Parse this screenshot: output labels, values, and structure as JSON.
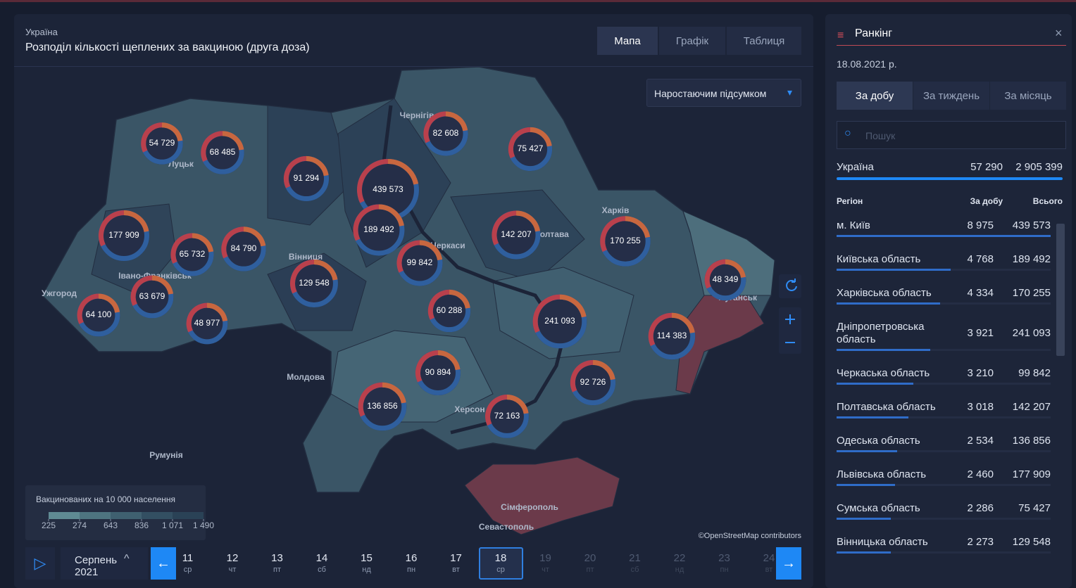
{
  "header": {
    "region": "Україна",
    "title": "Розподіл кількості щеплених за вакциною (друга доза)"
  },
  "view_tabs": [
    "Мапа",
    "Графік",
    "Таблиця"
  ],
  "mode_select": "Наростаючим підсумком",
  "map": {
    "labels": [
      "Чернігів",
      "Харків",
      "Ужгород",
      "Івано-Франківськ",
      "Вінниця",
      "Черкаси",
      "Херсон",
      "Молдова",
      "Румунія",
      "Сімферополь",
      "Севастополь",
      "Луцьк",
      "Полтава",
      "Луганськ"
    ],
    "bubbles": [
      {
        "value": 54729,
        "label": "54 729"
      },
      {
        "value": 68485,
        "label": "68 485"
      },
      {
        "value": 91294,
        "label": "91 294"
      },
      {
        "value": 439573,
        "label": "439 573"
      },
      {
        "value": 82608,
        "label": "82 608"
      },
      {
        "value": 75427,
        "label": "75 427"
      },
      {
        "value": 177909,
        "label": "177 909"
      },
      {
        "value": 189492,
        "label": "189 492"
      },
      {
        "value": 142207,
        "label": "142 207"
      },
      {
        "value": 170255,
        "label": "170 255"
      },
      {
        "value": 65732,
        "label": "65 732"
      },
      {
        "value": 84790,
        "label": "84 790"
      },
      {
        "value": 99842,
        "label": "99 842"
      },
      {
        "value": 129548,
        "label": "129 548"
      },
      {
        "value": 48349,
        "label": "48 349"
      },
      {
        "value": 63679,
        "label": "63 679"
      },
      {
        "value": 64100,
        "label": "64 100"
      },
      {
        "value": 48977,
        "label": "48 977"
      },
      {
        "value": 60288,
        "label": "60 288"
      },
      {
        "value": 241093,
        "label": "241 093"
      },
      {
        "value": 114383,
        "label": "114 383"
      },
      {
        "value": 90894,
        "label": "90 894"
      },
      {
        "value": 92726,
        "label": "92 726"
      },
      {
        "value": 136856,
        "label": "136 856"
      },
      {
        "value": 72163,
        "label": "72 163"
      }
    ],
    "attribution": "©OpenStreetMap contributors"
  },
  "legend": {
    "title": "Вакцинованих на 10 000 населення",
    "ticks": [
      225,
      274,
      643,
      836,
      {
        "value": 1071,
        "label": "1 071"
      },
      {
        "value": 1490,
        "label": "1 490"
      }
    ]
  },
  "timeline": {
    "month": "Серпень",
    "year": 2021,
    "days": [
      {
        "day": 11,
        "weekday": "ср"
      },
      {
        "day": 12,
        "weekday": "чт"
      },
      {
        "day": 13,
        "weekday": "пт"
      },
      {
        "day": 14,
        "weekday": "сб"
      },
      {
        "day": 15,
        "weekday": "нд"
      },
      {
        "day": 16,
        "weekday": "пн"
      },
      {
        "day": 17,
        "weekday": "вт"
      },
      {
        "day": 18,
        "weekday": "ср"
      },
      {
        "day": 19,
        "weekday": "чт"
      },
      {
        "day": 20,
        "weekday": "пт"
      },
      {
        "day": 21,
        "weekday": "сб"
      },
      {
        "day": 22,
        "weekday": "нд"
      },
      {
        "day": 23,
        "weekday": "пн"
      },
      {
        "day": 24,
        "weekday": "вт"
      }
    ]
  },
  "ranking": {
    "title": "Ранкінг",
    "date": "18.08.2021 р.",
    "periods": [
      "За добу",
      "За тиждень",
      "За місяць"
    ],
    "search_placeholder": "Пошук",
    "total": {
      "name": "Україна",
      "daily": {
        "value": 57290,
        "label": "57 290"
      },
      "total": {
        "value": 2905399,
        "label": "2 905 399"
      }
    },
    "columns": [
      "Регіон",
      "За добу",
      "Всього"
    ],
    "rows": [
      {
        "name": "м. Київ",
        "daily": {
          "value": 8975,
          "label": "8 975"
        },
        "total": {
          "value": 439573,
          "label": "439 573"
        }
      },
      {
        "name": "Київська область",
        "daily": {
          "value": 4768,
          "label": "4 768"
        },
        "total": {
          "value": 189492,
          "label": "189 492"
        }
      },
      {
        "name": "Харківська область",
        "daily": {
          "value": 4334,
          "label": "4 334"
        },
        "total": {
          "value": 170255,
          "label": "170 255"
        }
      },
      {
        "name": "Дніпропетровська область",
        "daily": {
          "value": 3921,
          "label": "3 921"
        },
        "total": {
          "value": 241093,
          "label": "241 093"
        }
      },
      {
        "name": "Черкаська область",
        "daily": {
          "value": 3210,
          "label": "3 210"
        },
        "total": {
          "value": 99842,
          "label": "99 842"
        }
      },
      {
        "name": "Полтавська область",
        "daily": {
          "value": 3018,
          "label": "3 018"
        },
        "total": {
          "value": 142207,
          "label": "142 207"
        }
      },
      {
        "name": "Одеська область",
        "daily": {
          "value": 2534,
          "label": "2 534"
        },
        "total": {
          "value": 136856,
          "label": "136 856"
        }
      },
      {
        "name": "Львівська область",
        "daily": {
          "value": 2460,
          "label": "2 460"
        },
        "total": {
          "value": 177909,
          "label": "177 909"
        }
      },
      {
        "name": "Сумська область",
        "daily": {
          "value": 2286,
          "label": "2 286"
        },
        "total": {
          "value": 75427,
          "label": "75 427"
        }
      },
      {
        "name": "Вінницька область",
        "daily": {
          "value": 2273,
          "label": "2 273"
        },
        "total": {
          "value": 129548,
          "label": "129 548"
        }
      }
    ]
  }
}
